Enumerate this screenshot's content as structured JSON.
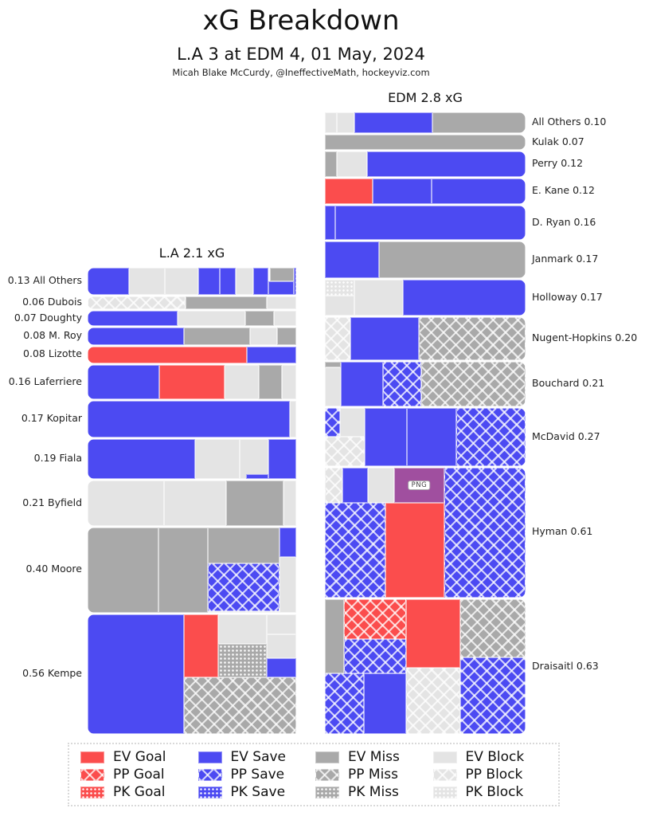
{
  "title": "xG Breakdown",
  "subtitle": "L.A 3 at EDM 4, 01 May, 2024",
  "credit": "Micah Blake McCurdy, @IneffectiveMath, hockeyviz.com",
  "png_badge": "PNG",
  "colors": {
    "goal": "#fb4d4d",
    "save": "#4c4af2",
    "miss": "#a9a9a9",
    "block": "#e4e4e4",
    "png_box": "#a04f9f",
    "text": "#111111",
    "legend_border": "#d9d9d9"
  },
  "legend": {
    "items": [
      {
        "label": "EV Goal",
        "cat": "ev-goal"
      },
      {
        "label": "EV Save",
        "cat": "ev-save"
      },
      {
        "label": "EV Miss",
        "cat": "ev-miss"
      },
      {
        "label": "EV Block",
        "cat": "ev-block"
      },
      {
        "label": "PP Goal",
        "cat": "pp-goal"
      },
      {
        "label": "PP Save",
        "cat": "pp-save"
      },
      {
        "label": "PP Miss",
        "cat": "pp-miss"
      },
      {
        "label": "PP Block",
        "cat": "pp-block"
      },
      {
        "label": "PK Goal",
        "cat": "pk-goal"
      },
      {
        "label": "PK Save",
        "cat": "pk-save"
      },
      {
        "label": "PK Miss",
        "cat": "pk-miss"
      },
      {
        "label": "PK Block",
        "cat": "pk-block"
      }
    ]
  },
  "chart_data": {
    "type": "mosaic-bar",
    "unit": "expected goals (xG), shot-by-shot mosaic; area proportional to xG",
    "categories_legend": [
      "EV Goal",
      "EV Save",
      "EV Miss",
      "EV Block",
      "PP Goal",
      "PP Save",
      "PP Miss",
      "PP Block",
      "PK Goal",
      "PK Save",
      "PK Miss",
      "PK Block"
    ],
    "teams": [
      {
        "team": "L.A",
        "header": "L.A 2.1 xG",
        "total_xg": 2.1,
        "label_side": "left",
        "players": [
          {
            "name": "All Others",
            "xg": 0.13,
            "label": "0.13 All Others",
            "rects": [
              {
                "c": "ev-save",
                "x": 0,
                "w": 0.2
              },
              {
                "c": "ev-block",
                "x": 0.2,
                "w": 0.17
              },
              {
                "c": "ev-block",
                "x": 0.37,
                "w": 0.16
              },
              {
                "c": "ev-save",
                "x": 0.53,
                "w": 0.105
              },
              {
                "c": "ev-save",
                "x": 0.635,
                "w": 0.075
              },
              {
                "c": "ev-block",
                "x": 0.71,
                "w": 0.085
              },
              {
                "c": "ev-save",
                "x": 0.795,
                "w": 0.07
              },
              {
                "c": "ev-miss",
                "x": 0.875,
                "w": 0.115,
                "y": 0,
                "h": 0.5
              },
              {
                "c": "ev-save",
                "x": 0.865,
                "w": 0.125,
                "y": 0.5,
                "h": 0.5
              },
              {
                "c": "pk-save",
                "x": 0.99,
                "w": 0.01
              }
            ]
          },
          {
            "name": "Dubois",
            "xg": 0.06,
            "label": "0.06 Dubois",
            "rects": [
              {
                "c": "pp-block",
                "x": 0,
                "w": 0.47
              },
              {
                "c": "ev-miss",
                "x": 0.47,
                "w": 0.39
              },
              {
                "c": "ev-block",
                "x": 0.86,
                "w": 0.14
              }
            ]
          },
          {
            "name": "Doughty",
            "xg": 0.07,
            "label": "0.07 Doughty",
            "rects": [
              {
                "c": "ev-save",
                "x": 0,
                "w": 0.43
              },
              {
                "c": "ev-block",
                "x": 0.43,
                "w": 0.325
              },
              {
                "c": "ev-miss",
                "x": 0.755,
                "w": 0.14
              },
              {
                "c": "ev-block",
                "x": 0.895,
                "w": 0.105
              }
            ]
          },
          {
            "name": "M. Roy",
            "xg": 0.08,
            "label": "0.08 M. Roy",
            "rects": [
              {
                "c": "ev-save",
                "x": 0,
                "w": 0.46
              },
              {
                "c": "ev-miss",
                "x": 0.46,
                "w": 0.32
              },
              {
                "c": "ev-block",
                "x": 0.78,
                "w": 0.13
              },
              {
                "c": "ev-miss",
                "x": 0.91,
                "w": 0.09
              }
            ]
          },
          {
            "name": "Lizotte",
            "xg": 0.08,
            "label": "0.08 Lizotte",
            "rects": [
              {
                "c": "ev-goal",
                "x": 0,
                "w": 0.765
              },
              {
                "c": "ev-save",
                "x": 0.765,
                "w": 0.235
              }
            ]
          },
          {
            "name": "Laferriere",
            "xg": 0.16,
            "label": "0.16 Laferriere",
            "rects": [
              {
                "c": "ev-save",
                "x": 0,
                "w": 0.345
              },
              {
                "c": "ev-goal",
                "x": 0.345,
                "w": 0.31
              },
              {
                "c": "ev-block",
                "x": 0.655,
                "w": 0.165
              },
              {
                "c": "ev-miss",
                "x": 0.82,
                "w": 0.11
              },
              {
                "c": "ev-block",
                "x": 0.93,
                "w": 0.07
              }
            ]
          },
          {
            "name": "Kopitar",
            "xg": 0.17,
            "label": "0.17 Kopitar",
            "rects": [
              {
                "c": "ev-save",
                "x": 0,
                "w": 0.97
              },
              {
                "c": "ev-block",
                "x": 0.97,
                "w": 0.03
              }
            ]
          },
          {
            "name": "Fiala",
            "xg": 0.19,
            "label": "0.19 Fiala",
            "rects": [
              {
                "c": "ev-save",
                "x": 0,
                "w": 0.515
              },
              {
                "c": "ev-block",
                "x": 0.515,
                "w": 0.215
              },
              {
                "c": "ev-block",
                "x": 0.73,
                "w": 0.135
              },
              {
                "c": "ev-save",
                "x": 0.865,
                "w": 0.135
              },
              {
                "c": "ev-save",
                "x": 0.76,
                "w": 0.105,
                "y": 0.88,
                "h": 0.12
              }
            ]
          },
          {
            "name": "Byfield",
            "xg": 0.21,
            "label": "0.21 Byfield",
            "rects": [
              {
                "c": "ev-block",
                "x": 0,
                "w": 0.365
              },
              {
                "c": "ev-block",
                "x": 0.365,
                "w": 0.3
              },
              {
                "c": "ev-miss",
                "x": 0.665,
                "w": 0.275
              },
              {
                "c": "ev-block",
                "x": 0.94,
                "w": 0.06
              }
            ]
          },
          {
            "name": "Moore",
            "xg": 0.4,
            "label": "0.40 Moore",
            "rects": [
              {
                "c": "ev-miss",
                "x": 0,
                "w": 0.34
              },
              {
                "c": "ev-miss",
                "x": 0.34,
                "w": 0.235
              },
              {
                "c": "ev-miss",
                "x": 0.575,
                "w": 0.345,
                "y": 0,
                "h": 0.42
              },
              {
                "c": "pp-save",
                "x": 0.575,
                "w": 0.345,
                "y": 0.42,
                "h": 0.56
              },
              {
                "c": "ev-block",
                "x": 0.575,
                "w": 0.345,
                "y": 0.98,
                "h": 0.02
              },
              {
                "c": "ev-save",
                "x": 0.92,
                "w": 0.08,
                "y": 0,
                "h": 0.35
              },
              {
                "c": "ev-block",
                "x": 0.92,
                "w": 0.08,
                "y": 0.35,
                "h": 0.65
              }
            ]
          },
          {
            "name": "Kempe",
            "xg": 0.56,
            "label": "0.56 Kempe",
            "rects": [
              {
                "c": "ev-save",
                "x": 0,
                "w": 0.46
              },
              {
                "c": "ev-goal",
                "x": 0.46,
                "w": 0.167,
                "y": 0,
                "h": 0.53
              },
              {
                "c": "ev-block",
                "x": 0.627,
                "w": 0.231,
                "y": 0,
                "h": 0.25
              },
              {
                "c": "ev-block",
                "x": 0.858,
                "w": 0.142,
                "y": 0,
                "h": 0.17
              },
              {
                "c": "ev-block",
                "x": 0.858,
                "w": 0.142,
                "y": 0.17,
                "h": 0.2
              },
              {
                "c": "pk-miss",
                "x": 0.627,
                "w": 0.231,
                "y": 0.25,
                "h": 0.28
              },
              {
                "c": "ev-save",
                "x": 0.858,
                "w": 0.142,
                "y": 0.37,
                "h": 0.16
              },
              {
                "c": "pp-miss",
                "x": 0.46,
                "w": 0.54,
                "y": 0.53,
                "h": 0.47
              }
            ]
          }
        ]
      },
      {
        "team": "EDM",
        "header": "EDM 2.8 xG",
        "total_xg": 2.8,
        "label_side": "right",
        "players": [
          {
            "name": "All Others",
            "xg": 0.1,
            "label": "All Others 0.10",
            "rects": [
              {
                "c": "ev-block",
                "x": 0,
                "w": 0.06
              },
              {
                "c": "ev-block",
                "x": 0.06,
                "w": 0.085
              },
              {
                "c": "ev-save",
                "x": 0.145,
                "w": 0.39
              },
              {
                "c": "ev-miss",
                "x": 0.535,
                "w": 0.465
              }
            ]
          },
          {
            "name": "Kulak",
            "xg": 0.07,
            "label": "Kulak 0.07",
            "rects": [
              {
                "c": "ev-miss",
                "x": 0,
                "w": 1
              }
            ]
          },
          {
            "name": "Perry",
            "xg": 0.12,
            "label": "Perry 0.12",
            "rects": [
              {
                "c": "ev-miss",
                "x": 0,
                "w": 0.06
              },
              {
                "c": "ev-block",
                "x": 0.06,
                "w": 0.15
              },
              {
                "c": "ev-save",
                "x": 0.21,
                "w": 0.79
              }
            ]
          },
          {
            "name": "E. Kane",
            "xg": 0.12,
            "label": "E. Kane 0.12",
            "rects": [
              {
                "c": "ev-goal",
                "x": 0,
                "w": 0.24
              },
              {
                "c": "ev-save",
                "x": 0.24,
                "w": 0.29
              },
              {
                "c": "ev-save",
                "x": 0.53,
                "w": 0.47
              }
            ]
          },
          {
            "name": "D. Ryan",
            "xg": 0.16,
            "label": "D. Ryan 0.16",
            "rects": [
              {
                "c": "ev-save",
                "x": 0,
                "w": 0.05
              },
              {
                "c": "ev-save",
                "x": 0.05,
                "w": 0.95
              }
            ]
          },
          {
            "name": "Janmark",
            "xg": 0.17,
            "label": "Janmark 0.17",
            "rects": [
              {
                "c": "ev-save",
                "x": 0,
                "w": 0.27
              },
              {
                "c": "ev-miss",
                "x": 0.27,
                "w": 0.73
              }
            ]
          },
          {
            "name": "Holloway",
            "xg": 0.17,
            "label": "Holloway 0.17",
            "rects": [
              {
                "c": "pk-block",
                "x": 0,
                "w": 0.145,
                "y": 0,
                "h": 0.45
              },
              {
                "c": "ev-block",
                "x": 0,
                "w": 0.145,
                "y": 0.45,
                "h": 0.55
              },
              {
                "c": "ev-block",
                "x": 0.145,
                "w": 0.245
              },
              {
                "c": "ev-save",
                "x": 0.39,
                "w": 0.61
              }
            ]
          },
          {
            "name": "Nugent-Hopkins",
            "xg": 0.2,
            "label": "Nugent-Hopkins 0.20",
            "rects": [
              {
                "c": "pp-block",
                "x": 0,
                "w": 0.125
              },
              {
                "c": "ev-save",
                "x": 0.125,
                "w": 0.345
              },
              {
                "c": "pp-miss",
                "x": 0.47,
                "w": 0.53
              }
            ]
          },
          {
            "name": "Bouchard",
            "xg": 0.21,
            "label": "Bouchard 0.21",
            "rects": [
              {
                "c": "ev-miss",
                "x": 0,
                "w": 0.08,
                "y": 0,
                "h": 0.12
              },
              {
                "c": "ev-block",
                "x": 0,
                "w": 0.08,
                "y": 0.12,
                "h": 0.88
              },
              {
                "c": "ev-save",
                "x": 0.08,
                "w": 0.21
              },
              {
                "c": "pp-save",
                "x": 0.29,
                "w": 0.19
              },
              {
                "c": "pp-miss",
                "x": 0.48,
                "w": 0.52
              }
            ]
          },
          {
            "name": "McDavid",
            "xg": 0.27,
            "label": "McDavid 0.27",
            "rects": [
              {
                "c": "pp-save",
                "x": 0,
                "w": 0.075,
                "y": 0,
                "h": 0.5
              },
              {
                "c": "ev-block",
                "x": 0.075,
                "w": 0.125,
                "y": 0,
                "h": 0.5
              },
              {
                "c": "pp-block",
                "x": 0,
                "w": 0.2,
                "y": 0.5,
                "h": 0.5
              },
              {
                "c": "ev-save",
                "x": 0.2,
                "w": 0.21
              },
              {
                "c": "ev-save",
                "x": 0.41,
                "w": 0.245
              },
              {
                "c": "pp-save",
                "x": 0.655,
                "w": 0.345
              }
            ]
          },
          {
            "name": "Hyman",
            "xg": 0.61,
            "label": "Hyman 0.61",
            "rects": [
              {
                "c": "pp-block",
                "x": 0,
                "w": 0.087,
                "y": 0,
                "h": 0.27
              },
              {
                "c": "ev-save",
                "x": 0.087,
                "w": 0.127,
                "y": 0,
                "h": 0.27
              },
              {
                "c": "ev-block",
                "x": 0.214,
                "w": 0.131,
                "y": 0,
                "h": 0.27
              },
              {
                "c": "png",
                "x": 0.345,
                "w": 0.25,
                "y": 0,
                "h": 0.27,
                "t": "PNG"
              },
              {
                "c": "pp-save",
                "x": 0.595,
                "w": 0.405,
                "y": 0,
                "h": 1
              },
              {
                "c": "pp-save",
                "x": 0,
                "w": 0.3,
                "y": 0.27,
                "h": 0.73
              },
              {
                "c": "ev-goal",
                "x": 0.3,
                "w": 0.295,
                "y": 0.27,
                "h": 0.73
              }
            ]
          },
          {
            "name": "Draisaitl",
            "xg": 0.63,
            "label": "Draisaitl 0.63",
            "rects": [
              {
                "c": "ev-miss",
                "x": 0,
                "w": 0.095,
                "y": 0,
                "h": 0.55
              },
              {
                "c": "pp-goal",
                "x": 0.095,
                "w": 0.31,
                "y": 0,
                "h": 0.295
              },
              {
                "c": "pp-save",
                "x": 0.095,
                "w": 0.31,
                "y": 0.295,
                "h": 0.255
              },
              {
                "c": "ev-goal",
                "x": 0.405,
                "w": 0.27,
                "y": 0,
                "h": 0.51
              },
              {
                "c": "pp-miss",
                "x": 0.675,
                "w": 0.325,
                "y": 0,
                "h": 0.43
              },
              {
                "c": "pp-save",
                "x": 0.675,
                "w": 0.325,
                "y": 0.43,
                "h": 0.57
              },
              {
                "c": "pp-save",
                "x": 0,
                "w": 0.195,
                "y": 0.55,
                "h": 0.45
              },
              {
                "c": "ev-save",
                "x": 0.195,
                "w": 0.21,
                "y": 0.55,
                "h": 0.45
              },
              {
                "c": "pp-block",
                "x": 0.405,
                "w": 0.27,
                "y": 0.51,
                "h": 0.49
              }
            ]
          }
        ]
      }
    ]
  }
}
